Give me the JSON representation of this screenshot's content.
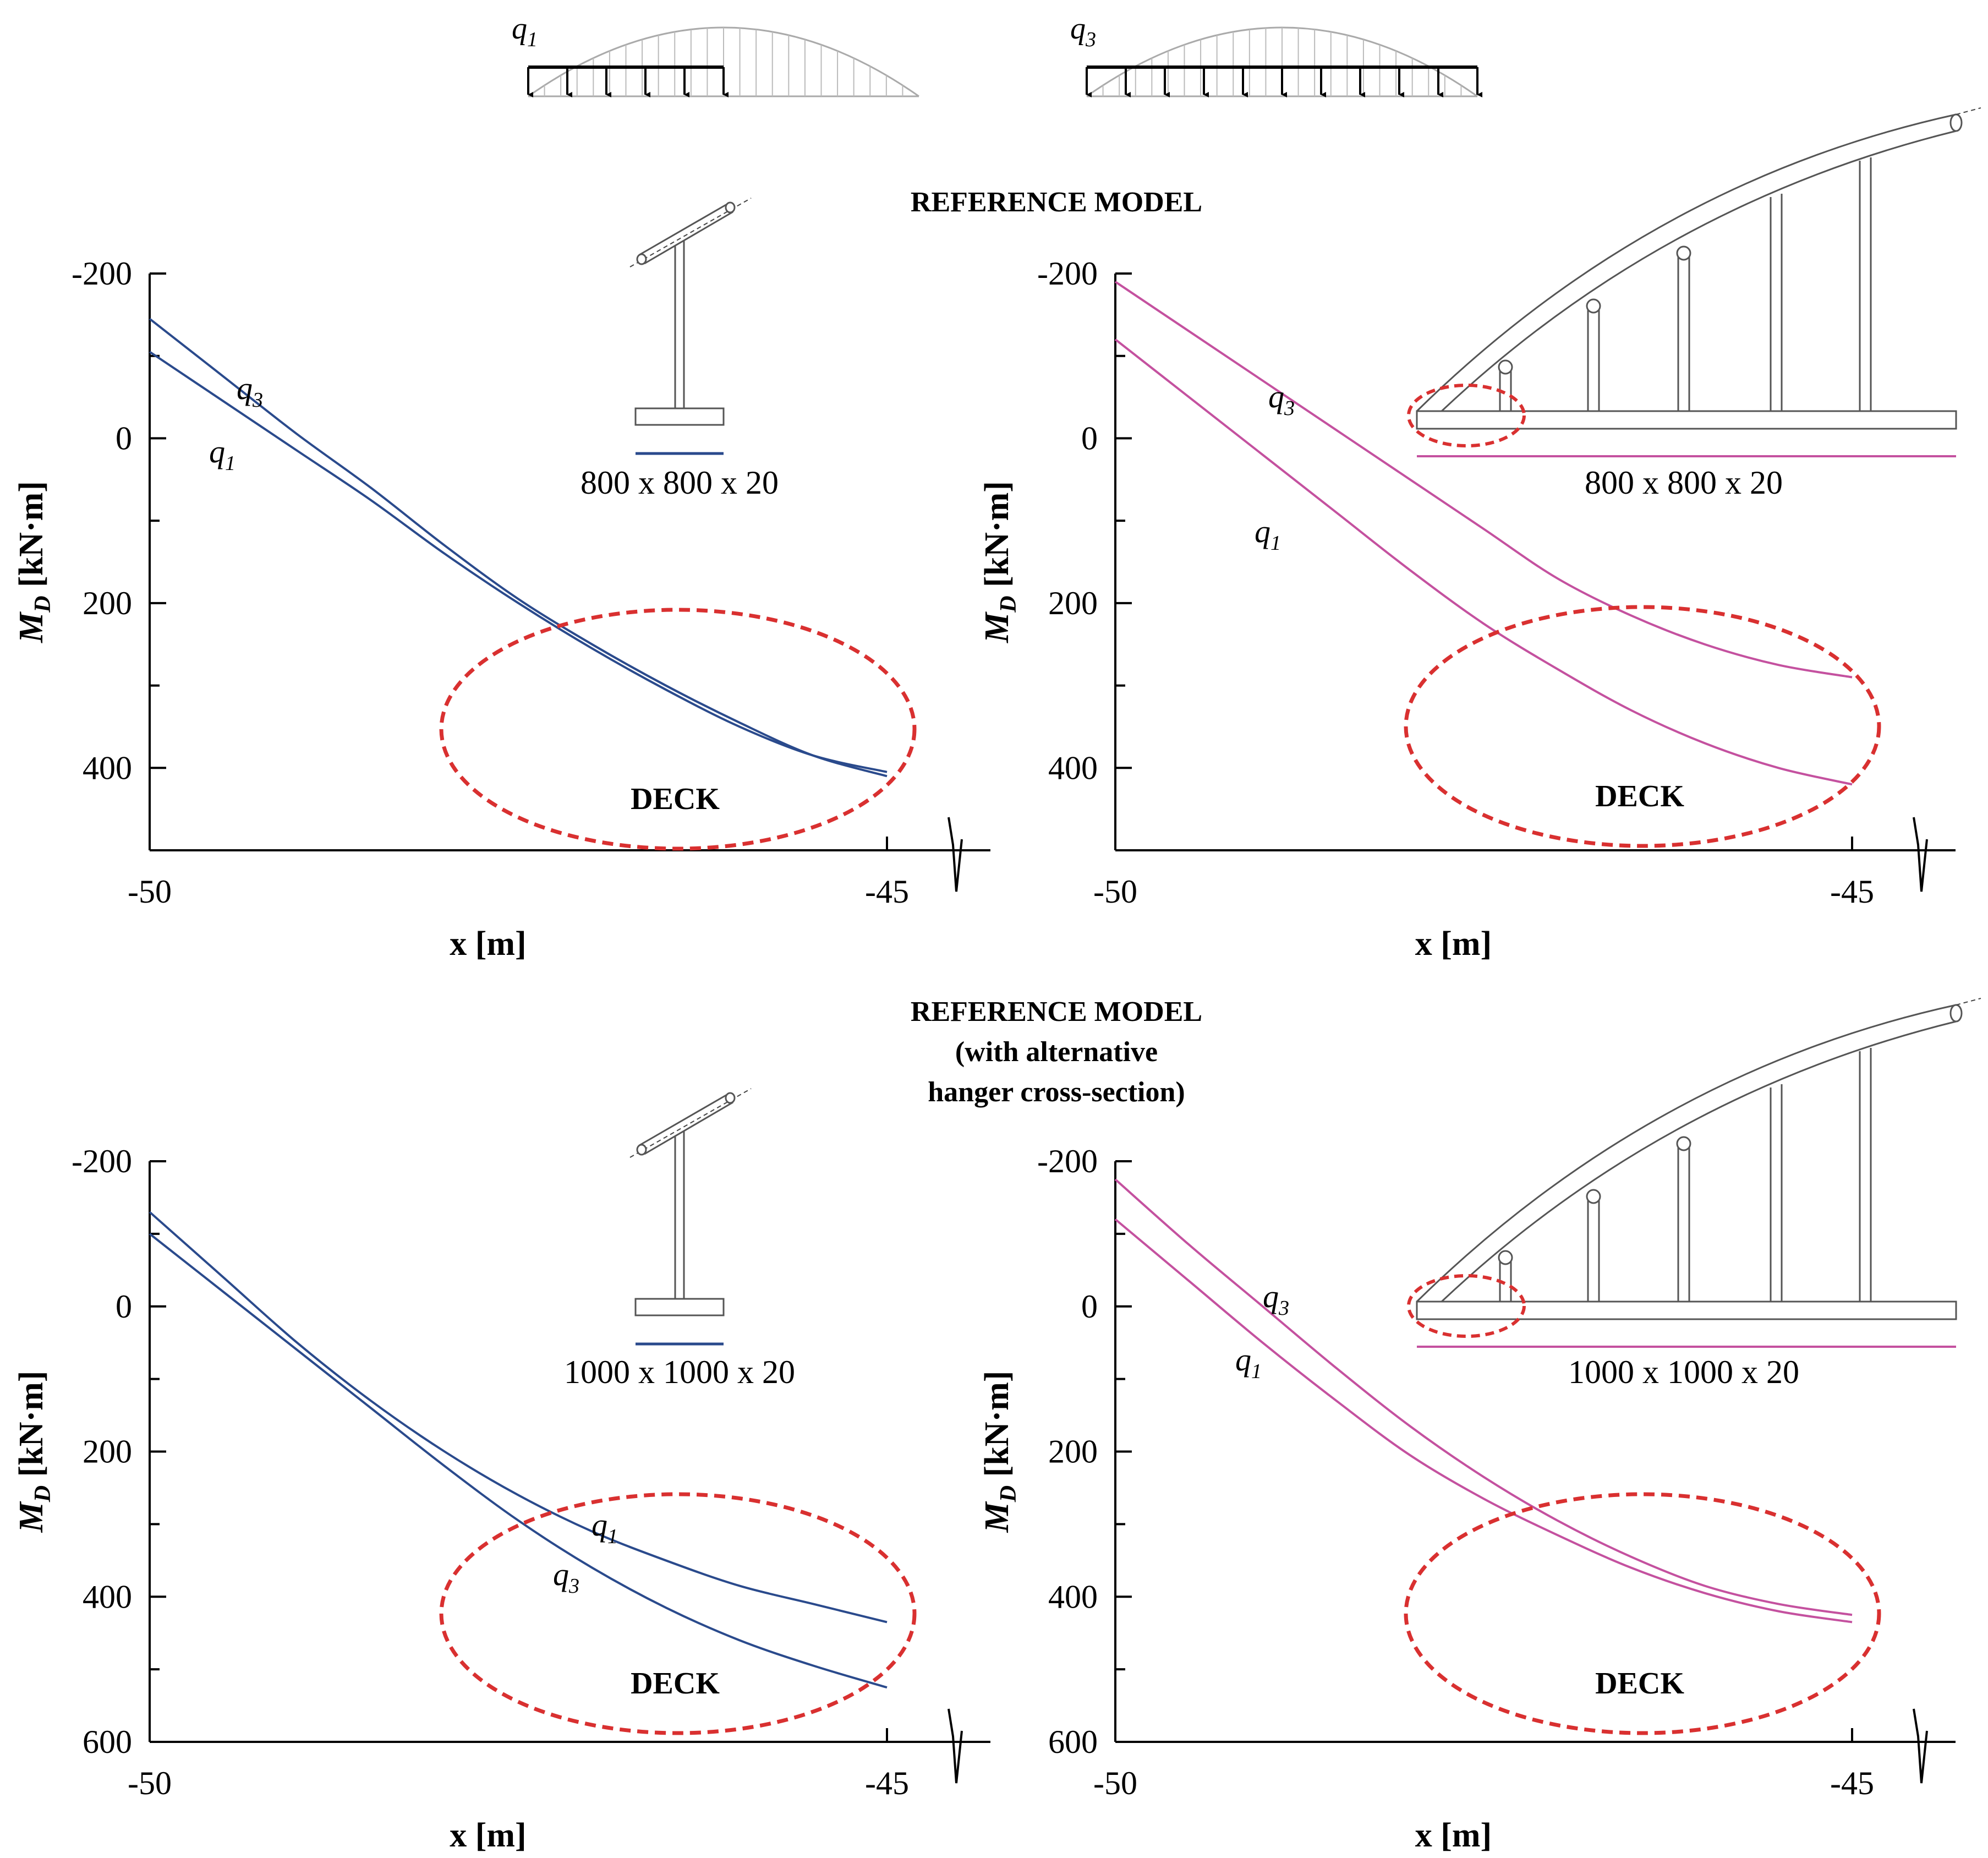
{
  "figure": {
    "load_cases": [
      {
        "label_main": "q",
        "label_sub": "1",
        "loaded_fraction": 0.5
      },
      {
        "label_main": "q",
        "label_sub": "3",
        "loaded_fraction": 1.0
      }
    ],
    "sections": [
      {
        "title_lines": [
          "REFERENCE MODEL"
        ],
        "cross_section": "800 x 800 x 20"
      },
      {
        "title_lines": [
          "REFERENCE MODEL",
          "(with alternative",
          "hanger cross-section)"
        ],
        "cross_section": "1000 x 1000 x 20"
      }
    ],
    "deck_label": "DECK",
    "colors": {
      "hanger_series": "#2a4a8c",
      "arch_series": "#c4519f",
      "highlight": "#d93030",
      "axis": "#000000",
      "drawing": "#777777"
    }
  },
  "chart_data": [
    {
      "type": "line",
      "panel": "top-left",
      "xlabel": "x [m]",
      "ylabel_main": "M",
      "ylabel_sub": "D",
      "ylabel_unit": "[kN·m]",
      "xlim": [
        -50,
        -45
      ],
      "ylim": [
        -200,
        500
      ],
      "y_inverted": true,
      "xticks": [
        -50,
        -45
      ],
      "yticks": [
        -200,
        0,
        200,
        400
      ],
      "series": [
        {
          "name": "q3",
          "x": [
            -50,
            -49.5,
            -49,
            -48.5,
            -48,
            -47.5,
            -47,
            -46.5,
            -46,
            -45.5,
            -45
          ],
          "y": [
            -145,
            -75,
            -5,
            60,
            130,
            195,
            250,
            300,
            345,
            385,
            410
          ]
        },
        {
          "name": "q1",
          "x": [
            -50,
            -49.5,
            -49,
            -48.5,
            -48,
            -47.5,
            -47,
            -46.5,
            -46,
            -45.5,
            -45
          ],
          "y": [
            -105,
            -45,
            15,
            75,
            140,
            200,
            255,
            305,
            350,
            385,
            405
          ]
        }
      ]
    },
    {
      "type": "line",
      "panel": "top-right",
      "xlabel": "x [m]",
      "ylabel_main": "M",
      "ylabel_sub": "D",
      "ylabel_unit": "[kN·m]",
      "xlim": [
        -50,
        -45
      ],
      "ylim": [
        -200,
        500
      ],
      "y_inverted": true,
      "xticks": [
        -50,
        -45
      ],
      "yticks": [
        -200,
        0,
        200,
        400
      ],
      "series": [
        {
          "name": "q3",
          "x": [
            -50,
            -49.5,
            -49,
            -48.5,
            -48,
            -47.5,
            -47,
            -46.5,
            -46,
            -45.5,
            -45
          ],
          "y": [
            -190,
            -130,
            -70,
            -10,
            50,
            110,
            170,
            215,
            250,
            275,
            290
          ]
        },
        {
          "name": "q1",
          "x": [
            -50,
            -49.5,
            -49,
            -48.5,
            -48,
            -47.5,
            -47,
            -46.5,
            -46,
            -45.5,
            -45
          ],
          "y": [
            -120,
            -50,
            20,
            90,
            160,
            225,
            280,
            330,
            370,
            400,
            420
          ]
        }
      ]
    },
    {
      "type": "line",
      "panel": "bottom-left",
      "xlabel": "x [m]",
      "ylabel_main": "M",
      "ylabel_sub": "D",
      "ylabel_unit": "[kN·m]",
      "xlim": [
        -50,
        -45
      ],
      "ylim": [
        -200,
        600
      ],
      "y_inverted": true,
      "xticks": [
        -50,
        -45
      ],
      "yticks": [
        -200,
        0,
        200,
        400,
        600
      ],
      "series": [
        {
          "name": "q1",
          "x": [
            -50,
            -49.5,
            -49,
            -48.5,
            -48,
            -47.5,
            -47,
            -46.5,
            -46,
            -45.5,
            -45
          ],
          "y": [
            -130,
            -40,
            50,
            130,
            200,
            260,
            310,
            350,
            385,
            410,
            435
          ]
        },
        {
          "name": "q3",
          "x": [
            -50,
            -49.5,
            -49,
            -48.5,
            -48,
            -47.5,
            -47,
            -46.5,
            -46,
            -45.5,
            -45
          ],
          "y": [
            -100,
            -20,
            60,
            140,
            220,
            295,
            360,
            415,
            460,
            495,
            525
          ]
        }
      ]
    },
    {
      "type": "line",
      "panel": "bottom-right",
      "xlabel": "x [m]",
      "ylabel_main": "M",
      "ylabel_sub": "D",
      "ylabel_unit": "[kN·m]",
      "xlim": [
        -50,
        -45
      ],
      "ylim": [
        -200,
        600
      ],
      "y_inverted": true,
      "xticks": [
        -50,
        -45
      ],
      "yticks": [
        -200,
        0,
        200,
        400,
        600
      ],
      "series": [
        {
          "name": "q3",
          "x": [
            -50,
            -49.5,
            -49,
            -48.5,
            -48,
            -47.5,
            -47,
            -46.5,
            -46,
            -45.5,
            -45
          ],
          "y": [
            -175,
            -85,
            0,
            85,
            165,
            235,
            295,
            345,
            385,
            410,
            425
          ]
        },
        {
          "name": "q1",
          "x": [
            -50,
            -49.5,
            -49,
            -48.5,
            -48,
            -47.5,
            -47,
            -46.5,
            -46,
            -45.5,
            -45
          ],
          "y": [
            -120,
            -35,
            50,
            130,
            205,
            265,
            315,
            360,
            395,
            420,
            435
          ]
        }
      ]
    }
  ]
}
